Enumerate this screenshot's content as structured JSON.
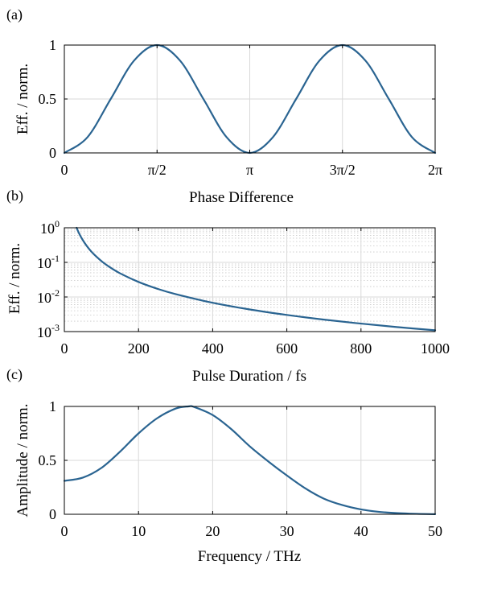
{
  "colors": {
    "line": "#2a6491",
    "grid": "#d9d9d9",
    "axis": "#000000"
  },
  "chart_data": [
    {
      "panel_label": "(a)",
      "type": "line",
      "xlabel": "Phase Difference",
      "ylabel": "Eff. / norm.",
      "xlim": [
        0,
        6.2832
      ],
      "ylim": [
        0,
        1
      ],
      "x_tick_values": [
        0,
        1.5708,
        3.1416,
        4.7124,
        6.2832
      ],
      "x_tick_labels": [
        "0",
        "π/2",
        "π",
        "3π/2",
        "2π"
      ],
      "y_tick_values": [
        0,
        0.5,
        1
      ],
      "y_tick_labels": [
        "0",
        "0.5",
        "1"
      ],
      "grid": true,
      "series": [
        {
          "x": [
            0,
            0.3927,
            0.7854,
            1.1781,
            1.5708,
            1.9635,
            2.3562,
            2.7489,
            3.1416,
            3.5343,
            3.927,
            4.3197,
            4.7124,
            5.1051,
            5.4978,
            5.8905,
            6.2832
          ],
          "y": [
            0,
            0.146,
            0.5,
            0.854,
            1,
            0.854,
            0.5,
            0.146,
            0,
            0.146,
            0.5,
            0.854,
            1,
            0.854,
            0.5,
            0.146,
            0
          ]
        }
      ]
    },
    {
      "panel_label": "(b)",
      "type": "line",
      "xlabel": "Pulse Duration / fs",
      "ylabel": "Eff. / norm.",
      "xlim": [
        0,
        1000
      ],
      "ylim": [
        0.001,
        1
      ],
      "yscale": "log",
      "x_tick_values": [
        0,
        200,
        400,
        600,
        800,
        1000
      ],
      "x_tick_labels": [
        "0",
        "200",
        "400",
        "600",
        "800",
        "1000"
      ],
      "y_tick_values": [
        1,
        0.1,
        0.01,
        0.001
      ],
      "y_tick_mantissa": [
        "10",
        "10",
        "10",
        "10"
      ],
      "y_tick_exponents": [
        "0",
        "-1",
        "-2",
        "-3"
      ],
      "grid": true,
      "minor_grid": true,
      "series": [
        {
          "x": [
            33,
            40,
            50,
            60,
            70,
            80,
            100,
            120,
            150,
            200,
            250,
            300,
            400,
            500,
            600,
            700,
            800,
            900,
            1000
          ],
          "y": [
            1,
            0.68,
            0.436,
            0.303,
            0.222,
            0.17,
            0.109,
            0.0757,
            0.0484,
            0.0272,
            0.0174,
            0.0121,
            0.0068,
            0.00436,
            0.00303,
            0.00222,
            0.0017,
            0.00134,
            0.00109
          ]
        }
      ]
    },
    {
      "panel_label": "(c)",
      "type": "line",
      "xlabel": "Frequency / THz",
      "ylabel": "Amplitude / norm.",
      "xlim": [
        0,
        50
      ],
      "ylim": [
        0,
        1
      ],
      "x_tick_values": [
        0,
        10,
        20,
        30,
        40,
        50
      ],
      "x_tick_labels": [
        "0",
        "10",
        "20",
        "30",
        "40",
        "50"
      ],
      "y_tick_values": [
        0,
        0.5,
        1
      ],
      "y_tick_labels": [
        "0",
        "0.5",
        "1"
      ],
      "grid": true,
      "series": [
        {
          "x": [
            0,
            2.5,
            5,
            7.5,
            10,
            12.5,
            15,
            16.7,
            17.5,
            20,
            22.5,
            25,
            27.5,
            30,
            32.5,
            35,
            37.5,
            40,
            42.5,
            45,
            47.5,
            50
          ],
          "y": [
            0.31,
            0.34,
            0.43,
            0.58,
            0.75,
            0.89,
            0.98,
            1.0,
            0.995,
            0.92,
            0.79,
            0.63,
            0.49,
            0.36,
            0.24,
            0.145,
            0.085,
            0.045,
            0.022,
            0.01,
            0.004,
            0.001
          ]
        }
      ]
    }
  ]
}
